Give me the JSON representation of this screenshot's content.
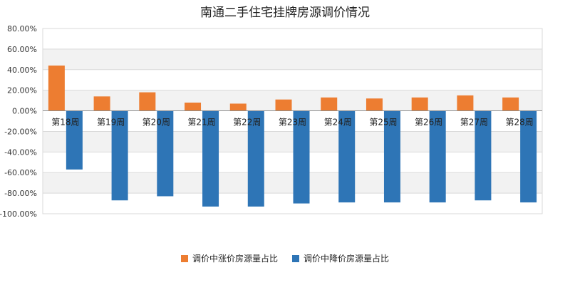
{
  "chart_data": {
    "type": "bar",
    "title": "南通二手住宅挂牌房源调价情况",
    "categories": [
      "第18周",
      "第19周",
      "第20周",
      "第21周",
      "第22周",
      "第23周",
      "第24周",
      "第25周",
      "第26周",
      "第27周",
      "第28周"
    ],
    "series": [
      {
        "name": "调价中涨价房源量占比",
        "color": "#ED7D31",
        "values": [
          44,
          14,
          18,
          8,
          7,
          11,
          13,
          12,
          13,
          15,
          13
        ]
      },
      {
        "name": "调价中降价房源量占比",
        "color": "#2E75B6",
        "values": [
          -57,
          -87,
          -83,
          -93,
          -93,
          -90,
          -89,
          -89,
          -89,
          -87,
          -89
        ]
      }
    ],
    "ylim": [
      -100,
      80
    ],
    "yticks": [
      80,
      60,
      40,
      20,
      0,
      -20,
      -40,
      -60,
      -80,
      -100
    ],
    "ytick_labels": [
      "80.00%",
      "60.00%",
      "40.00%",
      "20.00%",
      "0.00%",
      "-20.00%",
      "-40.00%",
      "-60.00%",
      "-80.00%",
      "-100.00%"
    ],
    "grid": true,
    "legend_position": "bottom"
  }
}
